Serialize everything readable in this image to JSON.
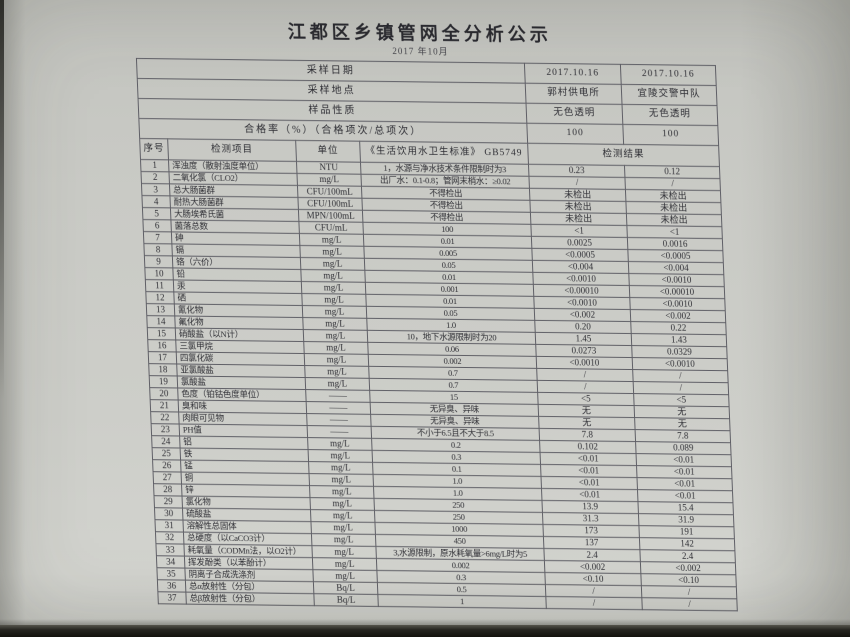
{
  "title": "江都区乡镇管网全分析公示",
  "subtitle": "2017 年10月",
  "colors": {
    "paper": "#cdcec9",
    "ink": "#2e2e34",
    "border": "#5f5f66",
    "desk": "#13120c"
  },
  "info_rows": [
    {
      "label": "采样日期",
      "v1": "2017.10.16",
      "v2": "2017.10.16"
    },
    {
      "label": "采样地点",
      "v1": "郭村供电所",
      "v2": "宜陵交警中队"
    },
    {
      "label": "样品性质",
      "v1": "无色透明",
      "v2": "无色透明"
    },
    {
      "label": "合格率（%）（合格项次/总项次）",
      "v1": "100",
      "v2": "100"
    }
  ],
  "columns": [
    "序号",
    "检测项目",
    "单位",
    "《生活饮用水卫生标准》 GB5749",
    "检测结果"
  ],
  "rows": [
    {
      "no": "1",
      "item": "浑浊度（散射浊度单位）",
      "unit": "NTU",
      "standard": "1，水源与净水技术条件限制时为3",
      "r1": "0.23",
      "r2": "0.12"
    },
    {
      "no": "2",
      "item": "二氧化氯（CLO2）",
      "unit": "mg/L",
      "standard": "出厂水：0.1-0.8；管网末梢水：≥0.02",
      "r1": "/",
      "r2": "/"
    },
    {
      "no": "3",
      "item": "总大肠菌群",
      "unit": "CFU/100mL",
      "standard": "不得检出",
      "r1": "未检出",
      "r2": "未检出"
    },
    {
      "no": "4",
      "item": "耐热大肠菌群",
      "unit": "CFU/100mL",
      "standard": "不得检出",
      "r1": "未检出",
      "r2": "未检出"
    },
    {
      "no": "5",
      "item": "大肠埃希氏菌",
      "unit": "MPN/100mL",
      "standard": "不得检出",
      "r1": "未检出",
      "r2": "未检出"
    },
    {
      "no": "6",
      "item": "菌落总数",
      "unit": "CFU/mL",
      "standard": "100",
      "r1": "<1",
      "r2": "<1"
    },
    {
      "no": "7",
      "item": "砷",
      "unit": "mg/L",
      "standard": "0.01",
      "r1": "0.0025",
      "r2": "0.0016"
    },
    {
      "no": "8",
      "item": "镉",
      "unit": "mg/L",
      "standard": "0.005",
      "r1": "<0.0005",
      "r2": "<0.0005"
    },
    {
      "no": "9",
      "item": "铬（六价）",
      "unit": "mg/L",
      "standard": "0.05",
      "r1": "<0.004",
      "r2": "<0.004"
    },
    {
      "no": "10",
      "item": "铅",
      "unit": "mg/L",
      "standard": "0.01",
      "r1": "<0.0010",
      "r2": "<0.0010"
    },
    {
      "no": "11",
      "item": "汞",
      "unit": "mg/L",
      "standard": "0.001",
      "r1": "<0.00010",
      "r2": "<0.00010"
    },
    {
      "no": "12",
      "item": "硒",
      "unit": "mg/L",
      "standard": "0.01",
      "r1": "<0.0010",
      "r2": "<0.0010"
    },
    {
      "no": "13",
      "item": "氰化物",
      "unit": "mg/L",
      "standard": "0.05",
      "r1": "<0.002",
      "r2": "<0.002"
    },
    {
      "no": "14",
      "item": "氟化物",
      "unit": "mg/L",
      "standard": "1.0",
      "r1": "0.20",
      "r2": "0.22"
    },
    {
      "no": "15",
      "item": "硝酸盐（以N计）",
      "unit": "mg/L",
      "standard": "10，地下水源限制时为20",
      "r1": "1.45",
      "r2": "1.43"
    },
    {
      "no": "16",
      "item": "三氯甲烷",
      "unit": "mg/L",
      "standard": "0.06",
      "r1": "0.0273",
      "r2": "0.0329"
    },
    {
      "no": "17",
      "item": "四氯化碳",
      "unit": "mg/L",
      "standard": "0.002",
      "r1": "<0.0010",
      "r2": "<0.0010"
    },
    {
      "no": "18",
      "item": "亚氯酸盐",
      "unit": "mg/L",
      "standard": "0.7",
      "r1": "/",
      "r2": "/"
    },
    {
      "no": "19",
      "item": "氯酸盐",
      "unit": "mg/L",
      "standard": "0.7",
      "r1": "/",
      "r2": "/"
    },
    {
      "no": "20",
      "item": "色度（铂钴色度单位）",
      "unit": "——",
      "standard": "15",
      "r1": "<5",
      "r2": "<5"
    },
    {
      "no": "21",
      "item": "臭和味",
      "unit": "——",
      "standard": "无异臭、异味",
      "r1": "无",
      "r2": "无"
    },
    {
      "no": "22",
      "item": "肉眼可见物",
      "unit": "——",
      "standard": "无异臭、异味",
      "r1": "无",
      "r2": "无"
    },
    {
      "no": "23",
      "item": "PH值",
      "unit": "——",
      "standard": "不小于6.5且不大于8.5",
      "r1": "7.8",
      "r2": "7.8"
    },
    {
      "no": "24",
      "item": "铝",
      "unit": "mg/L",
      "standard": "0.2",
      "r1": "0.102",
      "r2": "0.089"
    },
    {
      "no": "25",
      "item": "铁",
      "unit": "mg/L",
      "standard": "0.3",
      "r1": "<0.01",
      "r2": "<0.01"
    },
    {
      "no": "26",
      "item": "锰",
      "unit": "mg/L",
      "standard": "0.1",
      "r1": "<0.01",
      "r2": "<0.01"
    },
    {
      "no": "27",
      "item": "铜",
      "unit": "mg/L",
      "standard": "1.0",
      "r1": "<0.01",
      "r2": "<0.01"
    },
    {
      "no": "28",
      "item": "锌",
      "unit": "mg/L",
      "standard": "1.0",
      "r1": "<0.01",
      "r2": "<0.01"
    },
    {
      "no": "29",
      "item": "氯化物",
      "unit": "mg/L",
      "standard": "250",
      "r1": "13.9",
      "r2": "15.4"
    },
    {
      "no": "30",
      "item": "硫酸盐",
      "unit": "mg/L",
      "standard": "250",
      "r1": "31.3",
      "r2": "31.9"
    },
    {
      "no": "31",
      "item": "溶解性总固体",
      "unit": "mg/L",
      "standard": "1000",
      "r1": "173",
      "r2": "191"
    },
    {
      "no": "32",
      "item": "总硬度（以CaCO3计）",
      "unit": "mg/L",
      "standard": "450",
      "r1": "137",
      "r2": "142"
    },
    {
      "no": "33",
      "item": "耗氧量（CODMn法，以O2计）",
      "unit": "mg/L",
      "standard": "3,水源限制，原水耗氧量>6mg/L时为5",
      "r1": "2.4",
      "r2": "2.4"
    },
    {
      "no": "34",
      "item": "挥发酚类（以苯酚计）",
      "unit": "mg/L",
      "standard": "0.002",
      "r1": "<0.002",
      "r2": "<0.002"
    },
    {
      "no": "35",
      "item": "阴离子合成洗涤剂",
      "unit": "mg/L",
      "standard": "0.3",
      "r1": "<0.10",
      "r2": "<0.10"
    },
    {
      "no": "36",
      "item": "总α放射性（分包）",
      "unit": "Bq/L",
      "standard": "0.5",
      "r1": "/",
      "r2": "/"
    },
    {
      "no": "37",
      "item": "总β放射性（分包）",
      "unit": "Bq/L",
      "standard": "1",
      "r1": "/",
      "r2": "/"
    }
  ]
}
